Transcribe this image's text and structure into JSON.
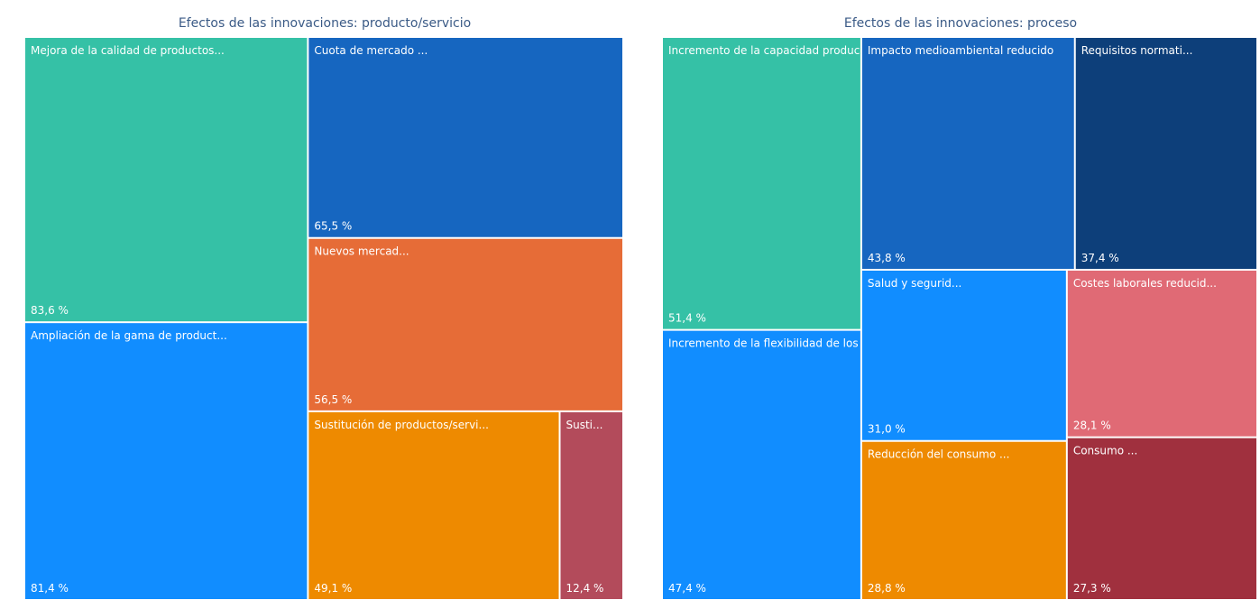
{
  "chart_data": [
    {
      "type": "treemap",
      "title": "Efectos de las innovaciones: producto/servicio",
      "categories": [
        "Mejora de la calidad de productos...",
        "Ampliación de la gama de product...",
        "Cuota de mercado ...",
        "Nuevos mercad...",
        "Sustitución de productos/servi...",
        "Susti..."
      ],
      "values": [
        83.6,
        81.4,
        65.5,
        56.5,
        49.1,
        12.4
      ],
      "value_labels": [
        "83,6 %",
        "81,4 %",
        "65,5 %",
        "56,5 %",
        "49,1 %",
        "12,4 %"
      ],
      "colors": [
        "#35c1a6",
        "#118dff",
        "#1666c0",
        "#e66c37",
        "#ee8a00",
        "#b34b5b"
      ]
    },
    {
      "type": "treemap",
      "title": "Efectos de las innovaciones: proceso",
      "categories": [
        "Incremento de la capacidad produc...",
        "Incremento de la flexibilidad de los ...",
        "Impacto medioambiental reducido",
        "Requisitos normati...",
        "Salud y segurid...",
        "Reducción del consumo ...",
        "Costes laborales reducid...",
        "Consumo ..."
      ],
      "values": [
        51.4,
        47.4,
        43.8,
        37.4,
        31.0,
        28.8,
        28.1,
        27.3
      ],
      "value_labels": [
        "51,4 %",
        "47,4 %",
        "43,8 %",
        "37,4 %",
        "31,0 %",
        "28,8 %",
        "28,1 %",
        "27,3 %"
      ],
      "colors": [
        "#35c1a6",
        "#118dff",
        "#1666c0",
        "#0d3f7a",
        "#118dff",
        "#ee8a00",
        "#e06a75",
        "#a0303e"
      ]
    }
  ]
}
